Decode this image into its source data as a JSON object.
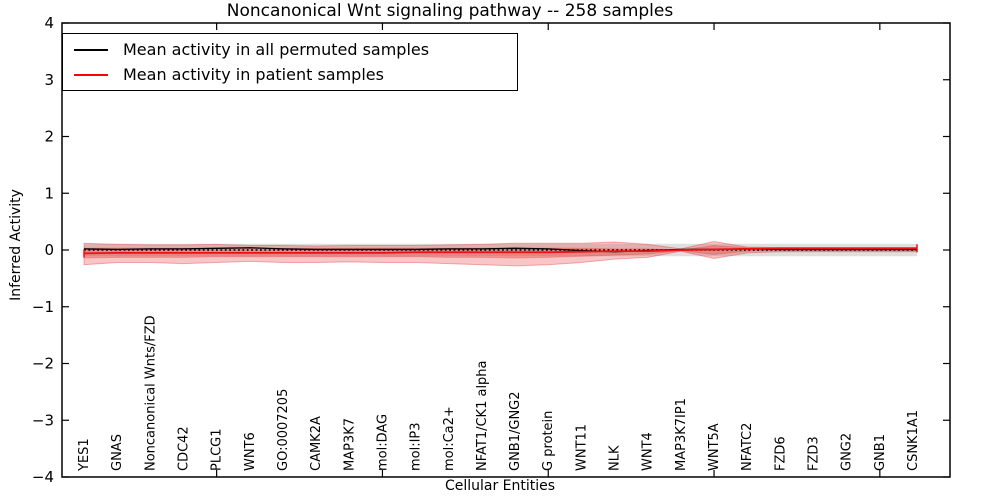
{
  "title": "Noncanonical Wnt signaling pathway -- 258 samples",
  "legend": {
    "items": [
      {
        "label": "Mean activity in all permuted samples",
        "color": "#000000"
      },
      {
        "label": "Mean activity in patient samples",
        "color": "#ff0000"
      }
    ]
  },
  "chart_data": {
    "type": "line",
    "title": "Noncanonical Wnt signaling pathway -- 258 samples",
    "xlabel": "Cellular Entities",
    "ylabel": "Inferred Activity",
    "ylim": [
      -4,
      4
    ],
    "yticks": [
      4,
      3,
      2,
      1,
      0,
      -1,
      -2,
      -3,
      -4
    ],
    "grid": false,
    "legend_position": "upper left",
    "categories": [
      "YES1",
      "GNAS",
      "Noncanonical Wnts/FZD",
      "CDC42",
      "PLCG1",
      "WNT6",
      "GO:0007205",
      "CAMK2A",
      "MAP3K7",
      "mol:DAG",
      "mol:IP3",
      "mol:Ca2+",
      "NFAT1/CK1 alpha",
      "GNB1/GNG2",
      "G protein",
      "WNT11",
      "NLK",
      "WNT4",
      "MAP3K7IP1",
      "WNT5A",
      "NFATC2",
      "FZD6",
      "FZD3",
      "GNG2",
      "GNB1",
      "CSNK1A1"
    ],
    "x_major_tick_indices": [
      4,
      9,
      14,
      19,
      24
    ],
    "series": [
      {
        "name": "Mean activity in all permuted samples",
        "color": "#000000",
        "line_style": "solid",
        "width": 1.3,
        "values": [
          0.02,
          0.01,
          0.02,
          0.02,
          0.03,
          0.04,
          0.02,
          0.01,
          0.01,
          0.01,
          0.01,
          0.02,
          0.02,
          0.03,
          0.02,
          -0.01,
          -0.03,
          -0.01,
          0.01,
          0.01,
          0.02,
          0.01,
          0.01,
          0.01,
          0.01,
          0.01
        ]
      },
      {
        "name": "Zero baseline (dotted)",
        "color": "#000000",
        "line_style": "dotted",
        "width": 1.6,
        "values": [
          0,
          0,
          0,
          0,
          0,
          0,
          0,
          0,
          0,
          0,
          0,
          0,
          0,
          0,
          0,
          0,
          0,
          0,
          0,
          0,
          0,
          0,
          0,
          0,
          0,
          0
        ]
      },
      {
        "name": "Mean activity in patient samples",
        "color": "#ee1111",
        "line_style": "solid",
        "width": 1.8,
        "end_caps": true,
        "values": [
          -0.06,
          -0.05,
          -0.05,
          -0.05,
          -0.05,
          -0.05,
          -0.05,
          -0.05,
          -0.05,
          -0.05,
          -0.04,
          -0.04,
          -0.04,
          -0.04,
          -0.04,
          -0.03,
          -0.02,
          -0.02,
          0.0,
          0.01,
          0.02,
          0.03,
          0.03,
          0.03,
          0.03,
          0.03
        ]
      }
    ],
    "bands": [
      {
        "name": "permuted sample range",
        "color": "rgba(40,40,40,0.15)",
        "upper": [
          0.11,
          0.11,
          0.11,
          0.11,
          0.11,
          0.11,
          0.11,
          0.11,
          0.11,
          0.11,
          0.11,
          0.11,
          0.11,
          0.11,
          0.11,
          0.11,
          0.11,
          0.11,
          0.11,
          0.11,
          0.11,
          0.11,
          0.11,
          0.11,
          0.11,
          0.11
        ],
        "lower": [
          -0.11,
          -0.11,
          -0.11,
          -0.11,
          -0.11,
          -0.11,
          -0.11,
          -0.11,
          -0.11,
          -0.11,
          -0.11,
          -0.11,
          -0.11,
          -0.11,
          -0.11,
          -0.11,
          -0.11,
          -0.11,
          -0.11,
          -0.11,
          -0.11,
          -0.11,
          -0.11,
          -0.11,
          -0.11,
          -0.11
        ]
      },
      {
        "name": "patient sample range outer",
        "color": "rgba(230,50,50,0.28)",
        "edge": "rgba(220,40,40,0.35)",
        "upper": [
          0.12,
          0.1,
          0.09,
          0.09,
          0.1,
          0.08,
          0.08,
          0.07,
          0.08,
          0.08,
          0.08,
          0.09,
          0.1,
          0.12,
          0.12,
          0.12,
          0.14,
          0.1,
          0.02,
          0.15,
          0.05,
          0.04,
          0.04,
          0.04,
          0.04,
          0.04
        ],
        "lower": [
          -0.26,
          -0.22,
          -0.22,
          -0.24,
          -0.22,
          -0.2,
          -0.22,
          -0.22,
          -0.21,
          -0.22,
          -0.22,
          -0.24,
          -0.26,
          -0.28,
          -0.26,
          -0.22,
          -0.16,
          -0.13,
          -0.02,
          -0.15,
          -0.05,
          -0.03,
          -0.03,
          -0.03,
          -0.03,
          -0.03
        ]
      },
      {
        "name": "patient sample range inner",
        "color": "rgba(230,40,40,0.30)",
        "edge": "rgba(220,40,40,0.25)",
        "upper": [
          0.03,
          0.03,
          0.03,
          0.03,
          0.03,
          0.03,
          0.03,
          0.03,
          0.03,
          0.03,
          0.03,
          0.03,
          0.03,
          0.04,
          0.03,
          0.03,
          0.02,
          0.02,
          0.0,
          0.08,
          0.04,
          0.04,
          0.04,
          0.04,
          0.04,
          0.04
        ],
        "lower": [
          -0.14,
          -0.13,
          -0.13,
          -0.13,
          -0.12,
          -0.12,
          -0.12,
          -0.12,
          -0.12,
          -0.12,
          -0.12,
          -0.13,
          -0.13,
          -0.14,
          -0.13,
          -0.11,
          -0.09,
          -0.07,
          -0.01,
          -0.08,
          -0.02,
          -0.01,
          -0.01,
          -0.01,
          -0.01,
          -0.01
        ]
      }
    ]
  }
}
